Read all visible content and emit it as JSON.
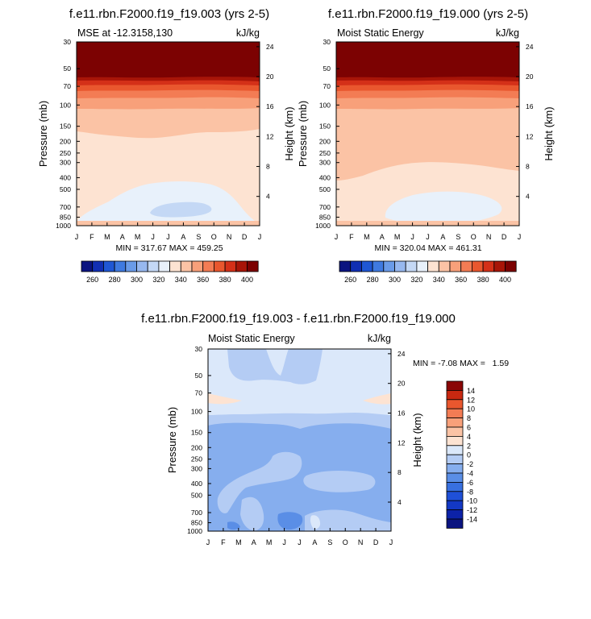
{
  "colors": {
    "mse_levels": [
      260,
      270,
      280,
      290,
      300,
      310,
      320,
      330,
      340,
      350,
      360,
      370,
      380,
      390,
      400
    ],
    "mse_palette": [
      "#0b1480",
      "#112fb3",
      "#1f57d4",
      "#3f7ae0",
      "#6a9be8",
      "#97b8ef",
      "#c4d8f5",
      "#e8f1fb",
      "#fde3d2",
      "#fbc3a5",
      "#f8a07a",
      "#f37c54",
      "#e9572e",
      "#d43018",
      "#a81508",
      "#7c0202"
    ],
    "diff_levels": [
      -14,
      -12,
      -10,
      -8,
      -6,
      -4,
      -2,
      0,
      2,
      4,
      6,
      8,
      10,
      12,
      14
    ],
    "diff_palette": [
      "#0b1480",
      "#0c22a8",
      "#1338c4",
      "#1f50d8",
      "#3870e0",
      "#5a8ee6",
      "#86aeee",
      "#b4ccf4",
      "#dbe8fa",
      "#fde3d2",
      "#fbc3a5",
      "#f8a07a",
      "#f37c54",
      "#e9572e",
      "#c82810",
      "#8a0606"
    ]
  },
  "chart_data": [
    {
      "type": "contour",
      "title": "f.e11.rbn.F2000.f19_f19.003 (yrs 2-5)",
      "left_string": "MSE at -12.3158,130",
      "right_string": "kJ/kg",
      "ylabel": "Pressure (mb)",
      "y2label": "Height (km)",
      "x_ticks": [
        "J",
        "F",
        "M",
        "A",
        "M",
        "J",
        "J",
        "A",
        "S",
        "O",
        "N",
        "D",
        "J"
      ],
      "y_ticks": [
        "30",
        "50",
        "70",
        "100",
        "150",
        "200",
        "250",
        "300",
        "400",
        "500",
        "700",
        "850",
        "1000"
      ],
      "y_values_mb": [
        30,
        50,
        70,
        100,
        150,
        200,
        250,
        300,
        400,
        500,
        700,
        850,
        1000
      ],
      "height_ticks": [
        "24",
        "20",
        "16",
        "12",
        "8",
        "4"
      ],
      "height_values_km": [
        24,
        20,
        16,
        12,
        8,
        4
      ],
      "min_max": "MIN = 317.67 MAX = 459.25",
      "colorbar_labels": [
        "260",
        "280",
        "300",
        "320",
        "340",
        "360",
        "380",
        "400"
      ],
      "colorbar_values": [
        260,
        280,
        300,
        320,
        340,
        360,
        380,
        400
      ],
      "fill_levels_by_pressure": [
        {
          "p_top": 30,
          "p_bot": 50,
          "value": 405
        },
        {
          "p_top": 50,
          "p_bot": 60,
          "value": 395
        },
        {
          "p_top": 60,
          "p_bot": 70,
          "value": 385
        },
        {
          "p_top": 70,
          "p_bot": 85,
          "value": 375
        },
        {
          "p_top": 85,
          "p_bot": 100,
          "value": 365
        },
        {
          "p_top": 100,
          "p_bot": 180,
          "value": 345
        },
        {
          "p_top": 180,
          "p_bot": 1000,
          "value": 335
        }
      ],
      "anomaly_blobs": [
        {
          "label": "near-surface low",
          "value": 325
        }
      ]
    },
    {
      "type": "contour",
      "title": "f.e11.rbn.F2000.f19_f19.000 (yrs 2-5)",
      "left_string": "Moist Static Energy",
      "right_string": "kJ/kg",
      "ylabel": "Pressure (mb)",
      "y2label": "Height (km)",
      "x_ticks": [
        "J",
        "F",
        "M",
        "A",
        "M",
        "J",
        "J",
        "A",
        "S",
        "O",
        "N",
        "D",
        "J"
      ],
      "y_ticks": [
        "30",
        "50",
        "70",
        "100",
        "150",
        "200",
        "250",
        "300",
        "400",
        "500",
        "700",
        "850",
        "1000"
      ],
      "y_values_mb": [
        30,
        50,
        70,
        100,
        150,
        200,
        250,
        300,
        400,
        500,
        700,
        850,
        1000
      ],
      "height_ticks": [
        "24",
        "20",
        "16",
        "12",
        "8",
        "4"
      ],
      "height_values_km": [
        24,
        20,
        16,
        12,
        8,
        4
      ],
      "min_max": "MIN = 320.04 MAX = 461.31",
      "colorbar_labels": [
        "260",
        "280",
        "300",
        "320",
        "340",
        "360",
        "380",
        "400"
      ],
      "colorbar_values": [
        260,
        280,
        300,
        320,
        340,
        360,
        380,
        400
      ]
    },
    {
      "type": "contour",
      "title": "f.e11.rbn.F2000.f19_f19.003 - f.e11.rbn.F2000.f19_f19.000",
      "left_string": "Moist Static Energy",
      "right_string": "kJ/kg",
      "ylabel": "Pressure (mb)",
      "y2label": "Height (km)",
      "x_ticks": [
        "J",
        "F",
        "M",
        "A",
        "M",
        "J",
        "J",
        "A",
        "S",
        "O",
        "N",
        "D",
        "J"
      ],
      "y_ticks": [
        "30",
        "50",
        "70",
        "100",
        "150",
        "200",
        "250",
        "300",
        "400",
        "500",
        "700",
        "850",
        "1000"
      ],
      "y_values_mb": [
        30,
        50,
        70,
        100,
        150,
        200,
        250,
        300,
        400,
        500,
        700,
        850,
        1000
      ],
      "height_ticks": [
        "24",
        "20",
        "16",
        "12",
        "8",
        "4"
      ],
      "height_values_km": [
        24,
        20,
        16,
        12,
        8,
        4
      ],
      "min_max": "MIN = -7.08 MAX =   1.59",
      "colorbar_labels": [
        "14",
        "12",
        "10",
        "8",
        "6",
        "4",
        "2",
        "0",
        "-2",
        "-4",
        "-6",
        "-8",
        "-10",
        "-12",
        "-14"
      ],
      "colorbar_values": [
        14,
        12,
        10,
        8,
        6,
        4,
        2,
        0,
        -2,
        -4,
        -6,
        -8,
        -10,
        -12,
        -14
      ]
    }
  ]
}
